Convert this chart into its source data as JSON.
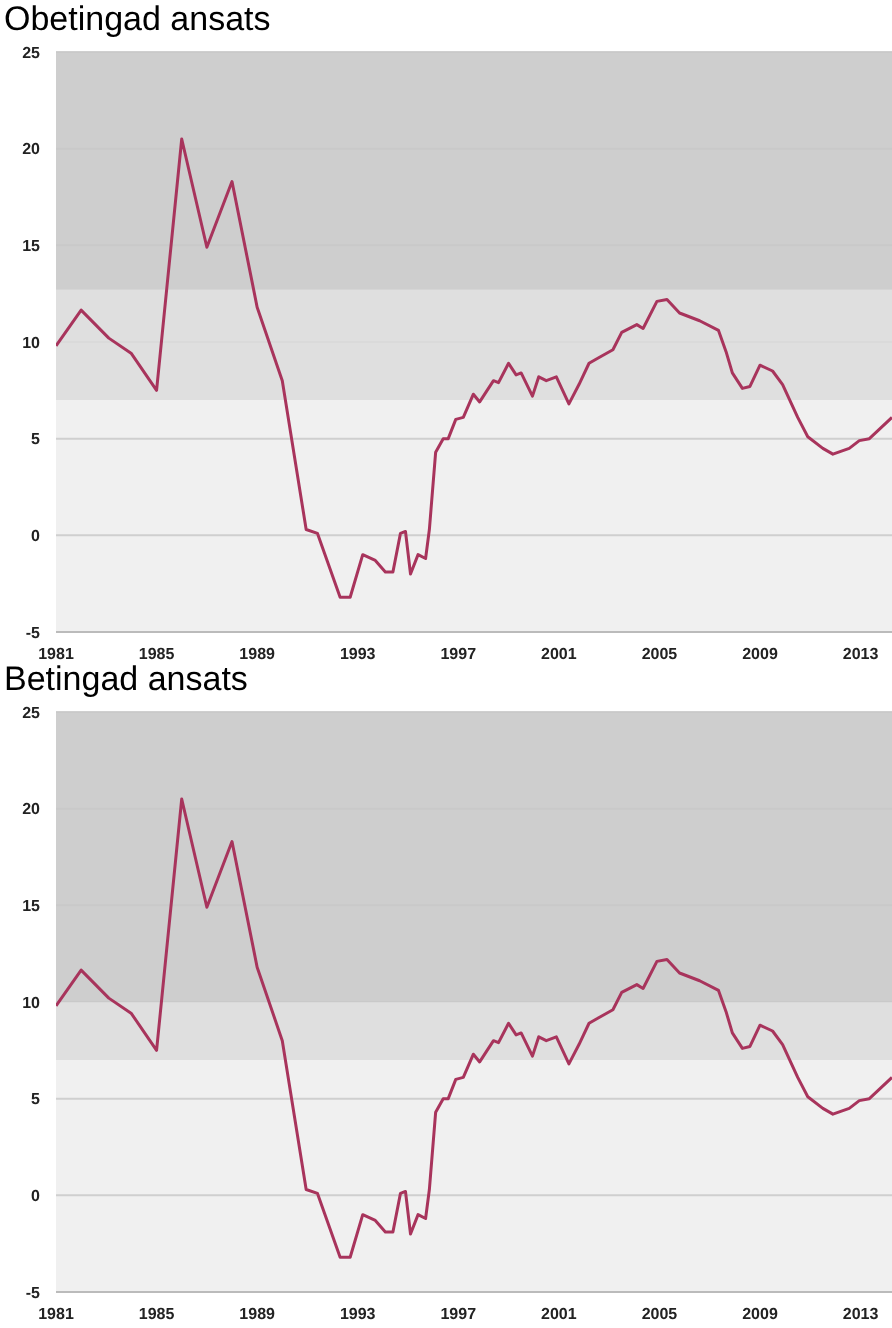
{
  "chart_data": [
    {
      "type": "line",
      "title": "Obetingad ansats",
      "x": [
        1981,
        1982,
        1983.1,
        1984,
        1985,
        1986,
        1987,
        1988,
        1989,
        1990,
        1990.95,
        1991.4,
        1992.3,
        1992.7,
        1993.2,
        1993.7,
        1994.1,
        1994.4,
        1994.7,
        1994.9,
        1995.1,
        1995.4,
        1995.7,
        1995.85,
        1996.1,
        1996.4,
        1996.6,
        1996.9,
        1997.2,
        1997.6,
        1997.85,
        1998.4,
        1998.6,
        1999,
        1999.3,
        1999.5,
        1999.95,
        2000.2,
        2000.5,
        2000.9,
        2001.4,
        2001.8,
        2002.2,
        2002.6,
        2003.15,
        2003.5,
        2004.1,
        2004.35,
        2004.9,
        2005.3,
        2005.8,
        2006.6,
        2007.35,
        2007.65,
        2007.9,
        2008.3,
        2008.6,
        2009,
        2009.5,
        2009.9,
        2010.5,
        2010.9,
        2011.5,
        2011.9,
        2012.55,
        2012.95,
        2013.35,
        2014.25
      ],
      "series": [
        {
          "color": "#a8345c",
          "values": [
            9.8,
            11.65,
            10.2,
            9.4,
            7.5,
            20.5,
            14.9,
            18.3,
            11.8,
            8,
            0.3,
            0.1,
            -3.2,
            -3.2,
            -1,
            -1.3,
            -1.9,
            -1.9,
            0.1,
            0.2,
            -2,
            -1,
            -1.2,
            0.3,
            4.3,
            5,
            5,
            6,
            6.1,
            7.3,
            6.9,
            8,
            7.9,
            8.9,
            8.3,
            8.4,
            7.2,
            8.2,
            8,
            8.2,
            6.8,
            7.8,
            8.9,
            9.2,
            9.6,
            10.5,
            10.9,
            10.7,
            12.1,
            12.2,
            11.5,
            11.1,
            10.6,
            9.5,
            8.4,
            7.6,
            7.7,
            8.8,
            8.5,
            7.8,
            6.1,
            5.1,
            4.5,
            4.2,
            4.5,
            4.9,
            5,
            6.1
          ]
        }
      ],
      "xlim": [
        1981,
        2014.25
      ],
      "xticks": [
        1981,
        1985,
        1989,
        1993,
        1997,
        2001,
        2005,
        2009,
        2013
      ],
      "ylim": [
        -5,
        25
      ],
      "yticks": [
        -5,
        0,
        5,
        10,
        15,
        20,
        25
      ],
      "grid": "y",
      "bands": [
        {
          "axis": "y",
          "from": 7,
          "to": 12.7,
          "color": "#dcdcdc"
        },
        {
          "axis": "y",
          "from": 12.7,
          "to": 25,
          "color": "#c8c8c8"
        }
      ]
    },
    {
      "type": "line",
      "title": "Betingad ansats",
      "x": [
        1981,
        1982,
        1983.1,
        1984,
        1985,
        1986,
        1987,
        1988,
        1989,
        1990,
        1990.95,
        1991.4,
        1992.3,
        1992.7,
        1993.2,
        1993.7,
        1994.1,
        1994.4,
        1994.7,
        1994.9,
        1995.1,
        1995.4,
        1995.7,
        1995.85,
        1996.1,
        1996.4,
        1996.6,
        1996.9,
        1997.2,
        1997.6,
        1997.85,
        1998.4,
        1998.6,
        1999,
        1999.3,
        1999.5,
        1999.95,
        2000.2,
        2000.5,
        2000.9,
        2001.4,
        2001.8,
        2002.2,
        2002.6,
        2003.15,
        2003.5,
        2004.1,
        2004.35,
        2004.9,
        2005.3,
        2005.8,
        2006.6,
        2007.35,
        2007.65,
        2007.9,
        2008.3,
        2008.6,
        2009,
        2009.5,
        2009.9,
        2010.5,
        2010.9,
        2011.5,
        2011.9,
        2012.55,
        2012.95,
        2013.35,
        2014.25
      ],
      "series": [
        {
          "color": "#a8345c",
          "values": [
            9.8,
            11.65,
            10.2,
            9.4,
            7.5,
            20.5,
            14.9,
            18.3,
            11.8,
            8,
            0.3,
            0.1,
            -3.2,
            -3.2,
            -1,
            -1.3,
            -1.9,
            -1.9,
            0.1,
            0.2,
            -2,
            -1,
            -1.2,
            0.3,
            4.3,
            5,
            5,
            6,
            6.1,
            7.3,
            6.9,
            8,
            7.9,
            8.9,
            8.3,
            8.4,
            7.2,
            8.2,
            8,
            8.2,
            6.8,
            7.8,
            8.9,
            9.2,
            9.6,
            10.5,
            10.9,
            10.7,
            12.1,
            12.2,
            11.5,
            11.1,
            10.6,
            9.5,
            8.4,
            7.6,
            7.7,
            8.8,
            8.5,
            7.8,
            6.1,
            5.1,
            4.5,
            4.2,
            4.5,
            4.9,
            5,
            6.1
          ]
        }
      ],
      "xlim": [
        1981,
        2014.25
      ],
      "xticks": [
        1981,
        1985,
        1989,
        1993,
        1997,
        2001,
        2005,
        2009,
        2013
      ],
      "ylim": [
        -5,
        25
      ],
      "yticks": [
        -5,
        0,
        5,
        10,
        15,
        20,
        25
      ],
      "grid": "y",
      "bands": [
        {
          "axis": "y",
          "from": 7,
          "to": 10,
          "color": "#dcdcdc"
        },
        {
          "axis": "y",
          "from": 10,
          "to": 25,
          "color": "#c8c8c8"
        }
      ]
    }
  ]
}
